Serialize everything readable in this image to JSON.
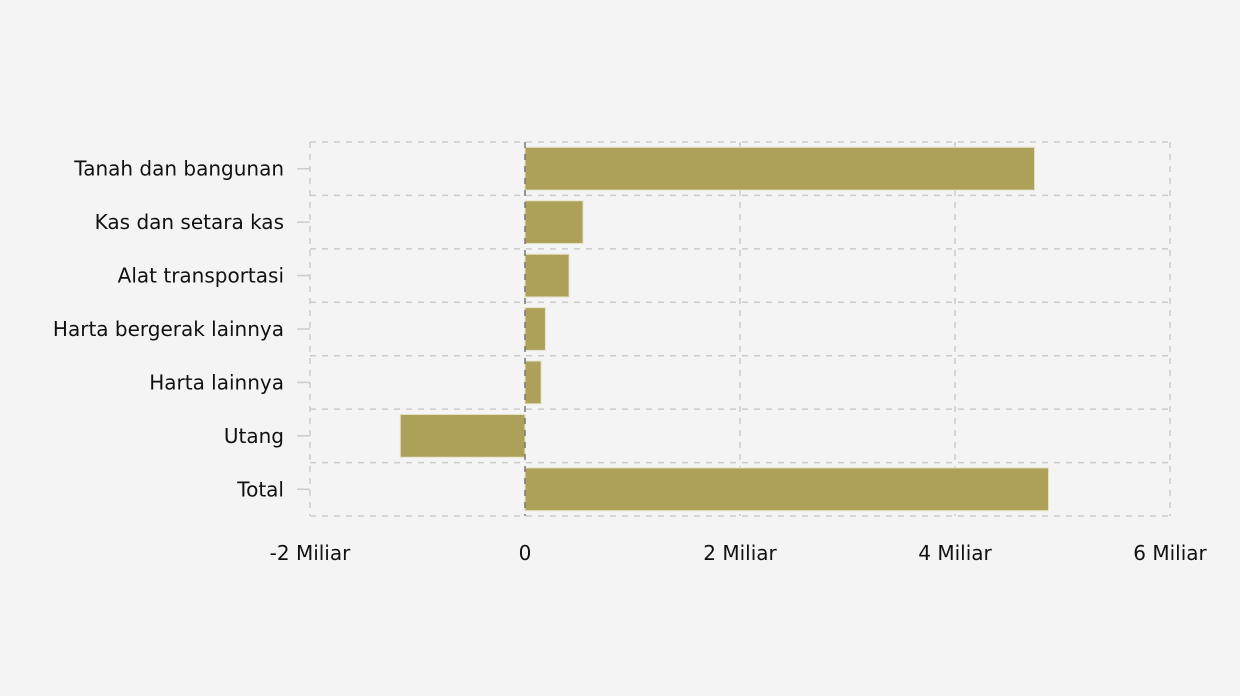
{
  "chart_data": {
    "type": "bar",
    "orientation": "horizontal",
    "categories": [
      "Tanah dan bangunan",
      "Kas dan setara kas",
      "Alat transportasi",
      "Harta bergerak lainnya",
      "Harta lainnya",
      "Utang",
      "Total"
    ],
    "values": [
      4.74,
      0.54,
      0.41,
      0.19,
      0.15,
      -1.16,
      4.87
    ],
    "value_unit": "Miliar",
    "xlim": [
      -2,
      6
    ],
    "xticks": [
      -2,
      0,
      2,
      4,
      6
    ],
    "xtick_labels": [
      "-2 Miliar",
      "0",
      "2 Miliar",
      "4 Miliar",
      "6 Miliar"
    ],
    "title": "",
    "xlabel": "",
    "ylabel": "",
    "grid": true,
    "colors": {
      "bar": "#ada15a",
      "grid": "#cccccc",
      "zero_line": "#777777",
      "background": "#f4f4f4"
    }
  }
}
